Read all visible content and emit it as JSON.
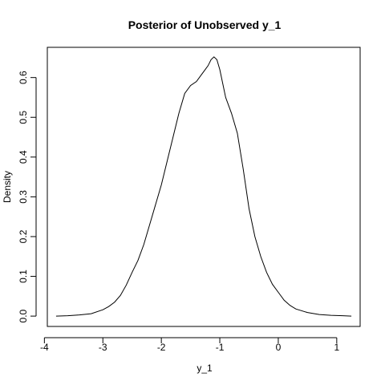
{
  "chart_data": {
    "type": "line",
    "title": "Posterior of Unobserved y_1",
    "xlabel": "y_1",
    "ylabel": "Density",
    "xlim": [
      -3.95,
      1.4
    ],
    "ylim": [
      -0.026,
      0.676
    ],
    "x_ticks": [
      -4,
      -3,
      -2,
      -1,
      0,
      1
    ],
    "y_ticks": [
      0.0,
      0.1,
      0.2,
      0.3,
      0.4,
      0.5,
      0.6
    ],
    "x_tick_labels": [
      "-4",
      "-3",
      "-2",
      "-1",
      "0",
      "1"
    ],
    "y_tick_labels": [
      "0.0",
      "0.1",
      "0.2",
      "0.3",
      "0.4",
      "0.5",
      "0.6"
    ],
    "grid": false,
    "series": [
      {
        "x": [
          -3.8,
          -3.6,
          -3.4,
          -3.2,
          -3.0,
          -2.9,
          -2.8,
          -2.7,
          -2.6,
          -2.5,
          -2.4,
          -2.3,
          -2.2,
          -2.1,
          -2.0,
          -1.9,
          -1.8,
          -1.7,
          -1.6,
          -1.5,
          -1.4,
          -1.3,
          -1.2,
          -1.15,
          -1.1,
          -1.05,
          -1.0,
          -0.9,
          -0.8,
          -0.7,
          -0.6,
          -0.5,
          -0.4,
          -0.3,
          -0.2,
          -0.1,
          0.0,
          0.1,
          0.2,
          0.3,
          0.5,
          0.7,
          0.9,
          1.1,
          1.25
        ],
        "y": [
          0.0,
          0.001,
          0.003,
          0.006,
          0.016,
          0.024,
          0.035,
          0.052,
          0.078,
          0.11,
          0.14,
          0.18,
          0.23,
          0.28,
          0.33,
          0.39,
          0.45,
          0.51,
          0.56,
          0.58,
          0.59,
          0.61,
          0.63,
          0.645,
          0.652,
          0.645,
          0.62,
          0.55,
          0.51,
          0.46,
          0.37,
          0.27,
          0.2,
          0.15,
          0.11,
          0.08,
          0.06,
          0.04,
          0.027,
          0.018,
          0.009,
          0.004,
          0.002,
          0.001,
          0.0
        ]
      }
    ]
  }
}
